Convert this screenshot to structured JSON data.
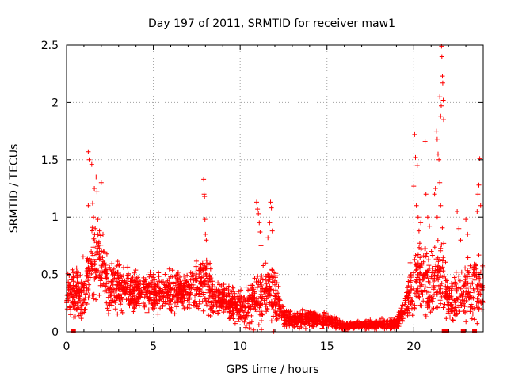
{
  "chart_data": {
    "type": "scatter",
    "title": "Day 197 of 2011, SRMTID for receiver maw1",
    "xlabel": "GPS time / hours",
    "ylabel": "SRMTID / TECUs",
    "xlim": [
      0,
      24
    ],
    "ylim": [
      0,
      2.5
    ],
    "x_ticks": [
      0,
      5,
      10,
      15,
      20
    ],
    "x_tick_labels": [
      "0",
      "5",
      "10",
      "15",
      "20"
    ],
    "y_ticks": [
      0,
      0.5,
      1,
      1.5,
      2,
      2.5
    ],
    "y_tick_labels": [
      "0",
      "0.5",
      "1",
      "1.5",
      "2",
      "2.5"
    ],
    "grid": true,
    "marker": "+",
    "series": [
      {
        "name": "SRMTID",
        "color": "#ff0000",
        "profile": [
          {
            "x": 0.0,
            "mean": 0.35,
            "spread": 0.3
          },
          {
            "x": 0.5,
            "mean": 0.3,
            "spread": 0.3
          },
          {
            "x": 1.0,
            "mean": 0.35,
            "spread": 0.35
          },
          {
            "x": 1.5,
            "mean": 0.6,
            "spread": 0.5
          },
          {
            "x": 2.0,
            "mean": 0.55,
            "spread": 0.4
          },
          {
            "x": 2.5,
            "mean": 0.35,
            "spread": 0.3
          },
          {
            "x": 3.0,
            "mean": 0.4,
            "spread": 0.3
          },
          {
            "x": 4.0,
            "mean": 0.35,
            "spread": 0.25
          },
          {
            "x": 5.0,
            "mean": 0.35,
            "spread": 0.25
          },
          {
            "x": 6.0,
            "mean": 0.35,
            "spread": 0.25
          },
          {
            "x": 7.0,
            "mean": 0.35,
            "spread": 0.2
          },
          {
            "x": 7.8,
            "mean": 0.45,
            "spread": 0.35
          },
          {
            "x": 8.5,
            "mean": 0.3,
            "spread": 0.25
          },
          {
            "x": 9.0,
            "mean": 0.3,
            "spread": 0.2
          },
          {
            "x": 10.0,
            "mean": 0.2,
            "spread": 0.2
          },
          {
            "x": 11.0,
            "mean": 0.3,
            "spread": 0.35
          },
          {
            "x": 11.8,
            "mean": 0.35,
            "spread": 0.4
          },
          {
            "x": 12.5,
            "mean": 0.15,
            "spread": 0.15
          },
          {
            "x": 13.0,
            "mean": 0.1,
            "spread": 0.1
          },
          {
            "x": 14.0,
            "mean": 0.12,
            "spread": 0.1
          },
          {
            "x": 15.0,
            "mean": 0.1,
            "spread": 0.08
          },
          {
            "x": 16.0,
            "mean": 0.05,
            "spread": 0.05
          },
          {
            "x": 17.0,
            "mean": 0.06,
            "spread": 0.05
          },
          {
            "x": 18.0,
            "mean": 0.06,
            "spread": 0.06
          },
          {
            "x": 19.0,
            "mean": 0.08,
            "spread": 0.07
          },
          {
            "x": 19.5,
            "mean": 0.2,
            "spread": 0.2
          },
          {
            "x": 20.0,
            "mean": 0.45,
            "spread": 0.4
          },
          {
            "x": 20.5,
            "mean": 0.45,
            "spread": 0.45
          },
          {
            "x": 21.0,
            "mean": 0.4,
            "spread": 0.4
          },
          {
            "x": 21.5,
            "mean": 0.6,
            "spread": 0.6
          },
          {
            "x": 22.0,
            "mean": 0.25,
            "spread": 0.25
          },
          {
            "x": 22.5,
            "mean": 0.3,
            "spread": 0.3
          },
          {
            "x": 23.0,
            "mean": 0.35,
            "spread": 0.35
          },
          {
            "x": 23.5,
            "mean": 0.4,
            "spread": 0.4
          },
          {
            "x": 24.0,
            "mean": 0.35,
            "spread": 0.35
          }
        ],
        "peaks": [
          {
            "x": 1.25,
            "y": 1.57
          },
          {
            "x": 1.3,
            "y": 1.5
          },
          {
            "x": 1.45,
            "y": 1.46
          },
          {
            "x": 1.5,
            "y": 1.12
          },
          {
            "x": 1.25,
            "y": 1.1
          },
          {
            "x": 1.6,
            "y": 1.25
          },
          {
            "x": 1.7,
            "y": 1.35
          },
          {
            "x": 1.75,
            "y": 1.22
          },
          {
            "x": 1.8,
            "y": 0.98
          },
          {
            "x": 1.65,
            "y": 0.9
          },
          {
            "x": 1.9,
            "y": 0.88
          },
          {
            "x": 2.0,
            "y": 1.3
          },
          {
            "x": 1.55,
            "y": 1.0
          },
          {
            "x": 2.1,
            "y": 0.85
          },
          {
            "x": 7.9,
            "y": 1.33
          },
          {
            "x": 7.92,
            "y": 1.2
          },
          {
            "x": 7.95,
            "y": 1.18
          },
          {
            "x": 7.97,
            "y": 0.98
          },
          {
            "x": 8.0,
            "y": 0.85
          },
          {
            "x": 8.05,
            "y": 0.8
          },
          {
            "x": 10.95,
            "y": 1.13
          },
          {
            "x": 11.0,
            "y": 1.07
          },
          {
            "x": 11.05,
            "y": 1.03
          },
          {
            "x": 11.1,
            "y": 0.95
          },
          {
            "x": 11.15,
            "y": 0.87
          },
          {
            "x": 11.2,
            "y": 0.75
          },
          {
            "x": 11.75,
            "y": 1.13
          },
          {
            "x": 11.8,
            "y": 1.08
          },
          {
            "x": 11.7,
            "y": 0.95
          },
          {
            "x": 11.85,
            "y": 0.88
          },
          {
            "x": 11.6,
            "y": 0.82
          },
          {
            "x": 20.05,
            "y": 1.72
          },
          {
            "x": 20.1,
            "y": 1.52
          },
          {
            "x": 20.2,
            "y": 1.45
          },
          {
            "x": 20.0,
            "y": 1.27
          },
          {
            "x": 20.15,
            "y": 1.1
          },
          {
            "x": 20.25,
            "y": 1.0
          },
          {
            "x": 20.3,
            "y": 0.88
          },
          {
            "x": 20.4,
            "y": 0.95
          },
          {
            "x": 20.65,
            "y": 1.66
          },
          {
            "x": 20.7,
            "y": 1.2
          },
          {
            "x": 20.8,
            "y": 1.0
          },
          {
            "x": 20.9,
            "y": 0.92
          },
          {
            "x": 21.3,
            "y": 1.75
          },
          {
            "x": 21.35,
            "y": 1.68
          },
          {
            "x": 21.4,
            "y": 1.55
          },
          {
            "x": 21.45,
            "y": 1.5
          },
          {
            "x": 21.5,
            "y": 1.3
          },
          {
            "x": 21.25,
            "y": 1.25
          },
          {
            "x": 21.55,
            "y": 1.1
          },
          {
            "x": 21.2,
            "y": 1.2
          },
          {
            "x": 21.35,
            "y": 1.0
          },
          {
            "x": 21.6,
            "y": 2.49
          },
          {
            "x": 21.62,
            "y": 2.4
          },
          {
            "x": 21.65,
            "y": 2.23
          },
          {
            "x": 21.67,
            "y": 2.17
          },
          {
            "x": 21.7,
            "y": 2.02
          },
          {
            "x": 21.58,
            "y": 1.97
          },
          {
            "x": 21.55,
            "y": 1.88
          },
          {
            "x": 21.72,
            "y": 1.85
          },
          {
            "x": 21.5,
            "y": 2.05
          },
          {
            "x": 22.5,
            "y": 1.05
          },
          {
            "x": 22.6,
            "y": 0.9
          },
          {
            "x": 22.7,
            "y": 0.8
          },
          {
            "x": 23.0,
            "y": 0.98
          },
          {
            "x": 23.1,
            "y": 0.85
          },
          {
            "x": 23.8,
            "y": 1.51
          },
          {
            "x": 23.75,
            "y": 1.28
          },
          {
            "x": 23.7,
            "y": 1.2
          },
          {
            "x": 23.85,
            "y": 1.1
          },
          {
            "x": 23.65,
            "y": 1.05
          }
        ],
        "near_zero_x": [
          0.4,
          21.75,
          21.9,
          22.85,
          23.5
        ]
      }
    ]
  }
}
